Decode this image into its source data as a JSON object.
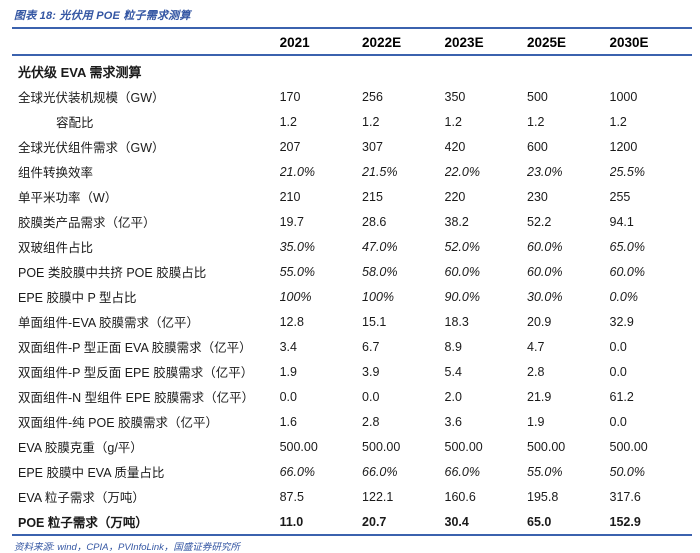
{
  "colors": {
    "accent_blue_text": "#3456a3",
    "rule_blue": "#3b62ae",
    "body_text": "#1a1a1a",
    "background": "#ffffff"
  },
  "figure": {
    "title": "图表 18: 光伏用 POE 粒子需求测算",
    "source_note": "资料来源: wind，CPIA，PVInfoLink，国盛证券研究所"
  },
  "table": {
    "col_headers": [
      "2021",
      "2022E",
      "2023E",
      "2025E",
      "2030E"
    ],
    "rows": [
      {
        "label": "光伏级 EVA 需求测算",
        "values": [
          "",
          "",
          "",
          "",
          ""
        ],
        "style": "section"
      },
      {
        "label": "全球光伏装机规模（GW）",
        "values": [
          "170",
          "256",
          "350",
          "500",
          "1000"
        ],
        "style": "normal"
      },
      {
        "label": "容配比",
        "values": [
          "1.2",
          "1.2",
          "1.2",
          "1.2",
          "1.2"
        ],
        "style": "indent"
      },
      {
        "label": "全球光伏组件需求（GW）",
        "values": [
          "207",
          "307",
          "420",
          "600",
          "1200"
        ],
        "style": "normal"
      },
      {
        "label": "组件转换效率",
        "values": [
          "21.0%",
          "21.5%",
          "22.0%",
          "23.0%",
          "25.5%"
        ],
        "style": "italic"
      },
      {
        "label": "单平米功率（W）",
        "values": [
          "210",
          "215",
          "220",
          "230",
          "255"
        ],
        "style": "normal"
      },
      {
        "label": "胶膜类产品需求（亿平）",
        "values": [
          "19.7",
          "28.6",
          "38.2",
          "52.2",
          "94.1"
        ],
        "style": "normal"
      },
      {
        "label": "双玻组件占比",
        "values": [
          "35.0%",
          "47.0%",
          "52.0%",
          "60.0%",
          "65.0%"
        ],
        "style": "italic"
      },
      {
        "label": "POE 类胶膜中共挤 POE 胶膜占比",
        "values": [
          "55.0%",
          "58.0%",
          "60.0%",
          "60.0%",
          "60.0%"
        ],
        "style": "italic"
      },
      {
        "label": "EPE 胶膜中 P 型占比",
        "values": [
          "100%",
          "100%",
          "90.0%",
          "30.0%",
          "0.0%"
        ],
        "style": "italic"
      },
      {
        "label": "单面组件-EVA 胶膜需求（亿平）",
        "values": [
          "12.8",
          "15.1",
          "18.3",
          "20.9",
          "32.9"
        ],
        "style": "normal"
      },
      {
        "label": "双面组件-P 型正面 EVA 胶膜需求（亿平）",
        "values": [
          "3.4",
          "6.7",
          "8.9",
          "4.7",
          "0.0"
        ],
        "style": "normal"
      },
      {
        "label": "双面组件-P 型反面 EPE 胶膜需求（亿平）",
        "values": [
          "1.9",
          "3.9",
          "5.4",
          "2.8",
          "0.0"
        ],
        "style": "normal"
      },
      {
        "label": "双面组件-N 型组件 EPE 胶膜需求（亿平）",
        "values": [
          "0.0",
          "0.0",
          "2.0",
          "21.9",
          "61.2"
        ],
        "style": "normal"
      },
      {
        "label": "双面组件-纯 POE 胶膜需求（亿平）",
        "values": [
          "1.6",
          "2.8",
          "3.6",
          "1.9",
          "0.0"
        ],
        "style": "normal"
      },
      {
        "label": "EVA 胶膜克重（g/平）",
        "values": [
          "500.00",
          "500.00",
          "500.00",
          "500.00",
          "500.00"
        ],
        "style": "normal"
      },
      {
        "label": "EPE 胶膜中 EVA 质量占比",
        "values": [
          "66.0%",
          "66.0%",
          "66.0%",
          "55.0%",
          "50.0%"
        ],
        "style": "italic"
      },
      {
        "label": "EVA 粒子需求（万吨）",
        "values": [
          "87.5",
          "122.1",
          "160.6",
          "195.8",
          "317.6"
        ],
        "style": "normal"
      },
      {
        "label": "POE 粒子需求（万吨）",
        "values": [
          "11.0",
          "20.7",
          "30.4",
          "65.0",
          "152.9"
        ],
        "style": "bold last"
      }
    ]
  }
}
